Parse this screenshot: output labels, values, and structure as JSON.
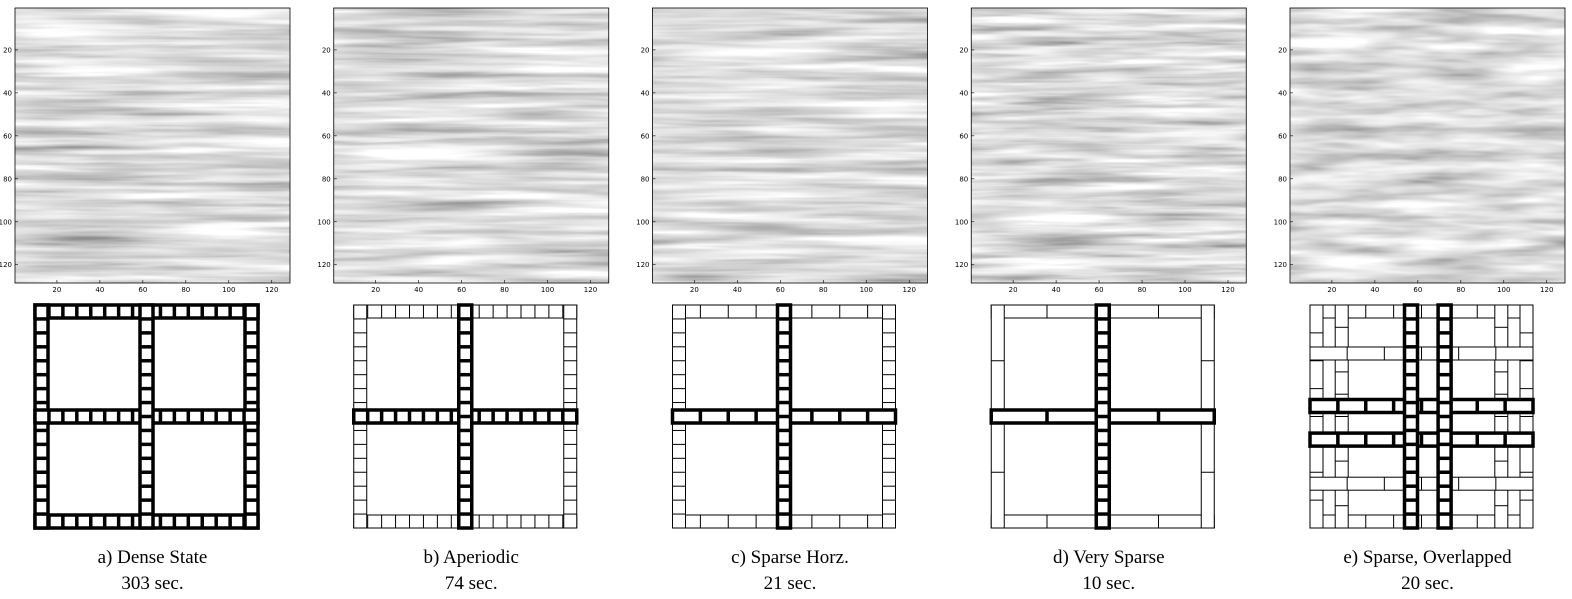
{
  "panels": [
    {
      "caption": "a) Dense State",
      "time": "303 sec."
    },
    {
      "caption": "b) Aperiodic",
      "time": "74 sec."
    },
    {
      "caption": "c) Sparse Horz.",
      "time": "21 sec."
    },
    {
      "caption": "d) Very Sparse",
      "time": "10 sec."
    },
    {
      "caption": "e) Sparse, Overlapped",
      "time": "20 sec."
    }
  ],
  "axes": {
    "xlim": [
      0.5,
      128.5
    ],
    "ylim": [
      0.5,
      128.5
    ],
    "xticks": [
      20,
      40,
      60,
      80,
      100,
      120
    ],
    "yticks": [
      20,
      40,
      60,
      80,
      100,
      120
    ]
  }
}
